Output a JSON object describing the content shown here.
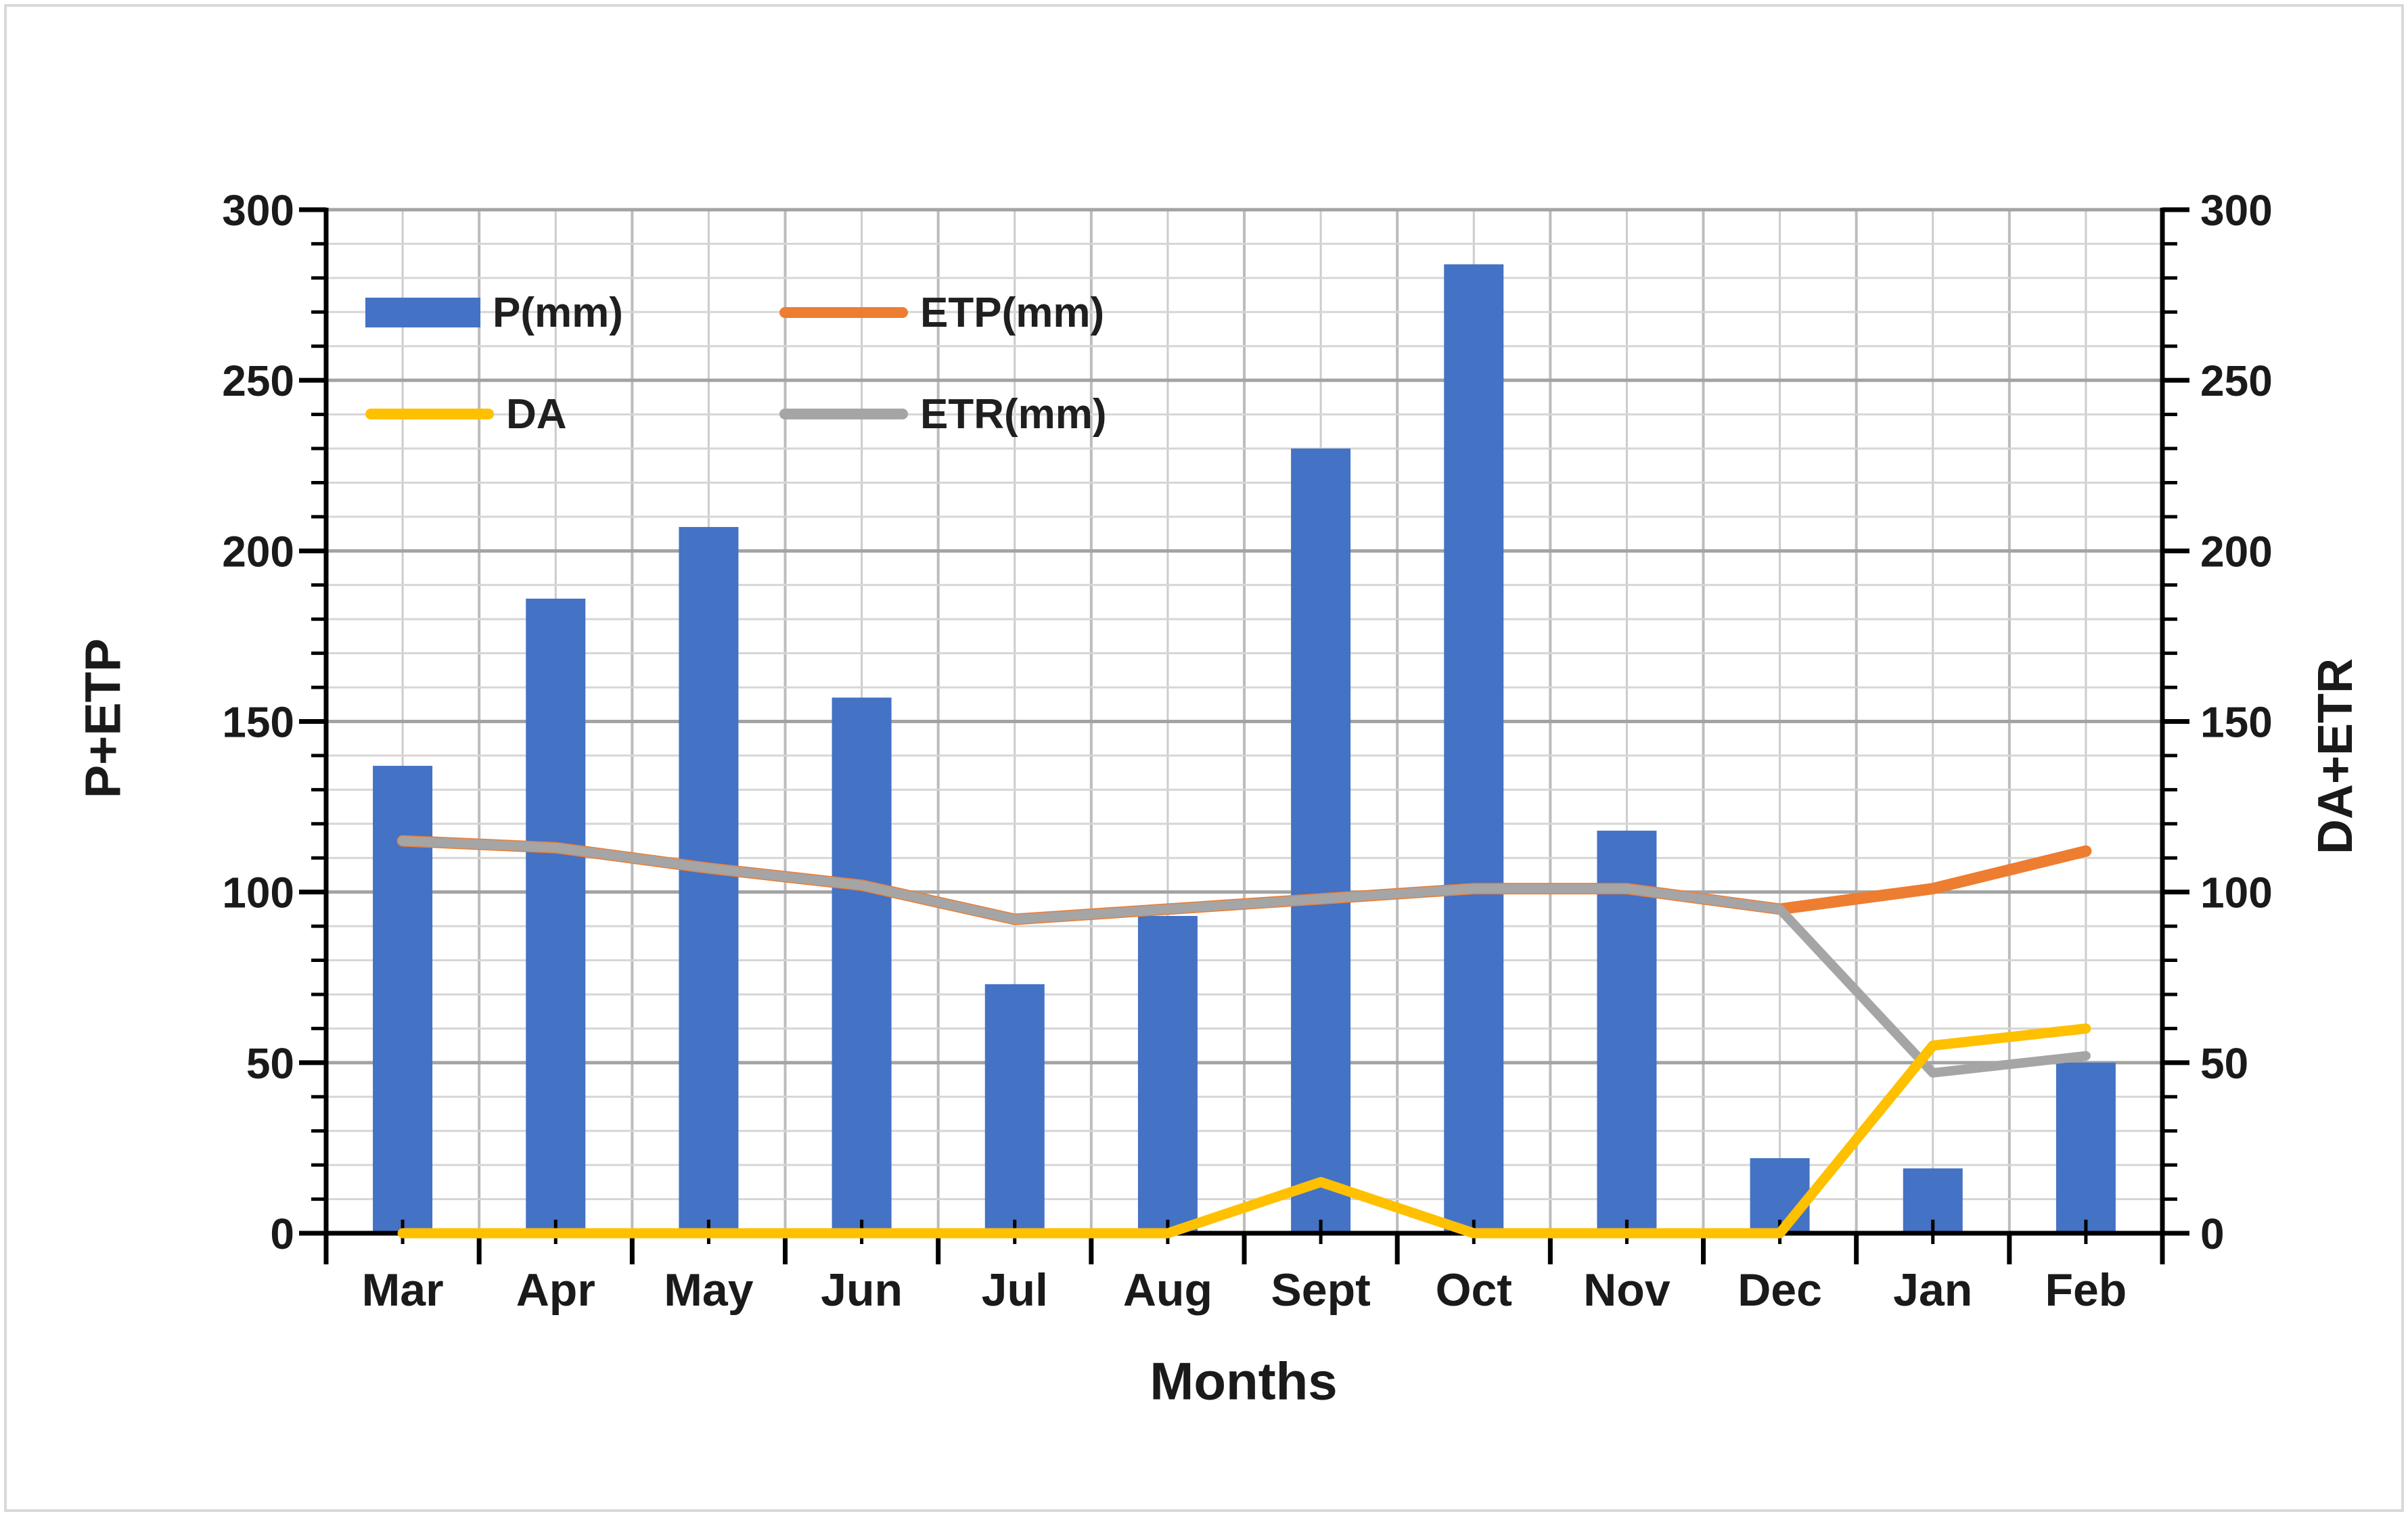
{
  "figure": {
    "background": "#ffffff",
    "frame_color": "#d9d9d9",
    "text_color": "#1a1a1a"
  },
  "chart_data": {
    "type": "combo-bar-line",
    "categories": [
      "Mar",
      "Apr",
      "May",
      "Jun",
      "Jul",
      "Aug",
      "Sept",
      "Oct",
      "Nov",
      "Dec",
      "Jan",
      "Feb"
    ],
    "series": [
      {
        "name": "P(mm)",
        "type": "bar",
        "axis": "left",
        "color": "#4472C4",
        "values": [
          137,
          186,
          207,
          157,
          73,
          93,
          230,
          284,
          118,
          22,
          19,
          50
        ]
      },
      {
        "name": "ETP(mm)",
        "type": "line",
        "axis": "left",
        "color": "#ED7D31",
        "values": [
          115,
          113,
          107,
          102,
          92,
          95,
          98,
          101,
          101,
          95,
          101,
          112
        ]
      },
      {
        "name": "DA",
        "type": "line",
        "axis": "right",
        "color": "#FFC000",
        "values": [
          0,
          0,
          0,
          0,
          0,
          0,
          15,
          0,
          0,
          0,
          55,
          60
        ]
      },
      {
        "name": "ETR(mm)",
        "type": "line",
        "axis": "right",
        "color": "#A5A5A5",
        "values": [
          115,
          113,
          107,
          102,
          92,
          95,
          98,
          101,
          101,
          95,
          47,
          52
        ]
      }
    ],
    "left_axis": {
      "title": "P+ETP",
      "min": 0,
      "max": 300,
      "major_step": 50,
      "minor_step": 10,
      "tick_labels": [
        "0",
        "50",
        "100",
        "150",
        "200",
        "250",
        "300"
      ]
    },
    "right_axis": {
      "title": "DA+ETR",
      "min": 0,
      "max": 300,
      "major_step": 50,
      "minor_step": 10,
      "tick_labels": [
        "0",
        "50",
        "100",
        "150",
        "200",
        "250",
        "300"
      ]
    },
    "x_axis": {
      "title": "Months"
    },
    "legend": {
      "position": "top-left-inside",
      "items": [
        {
          "label": "P(mm)",
          "swatch": "bar",
          "color": "#4472C4"
        },
        {
          "label": "ETP(mm)",
          "swatch": "line",
          "color": "#ED7D31"
        },
        {
          "label": "DA",
          "swatch": "line",
          "color": "#FFC000"
        },
        {
          "label": "ETR(mm)",
          "swatch": "line",
          "color": "#A5A5A5"
        }
      ]
    },
    "grid": {
      "h_minor": "#d6d6d6",
      "h_major": "#a3a3a3",
      "v_minor": "#cccccc",
      "v_major": "#bcbcbc"
    },
    "axis_color": "#000000"
  }
}
